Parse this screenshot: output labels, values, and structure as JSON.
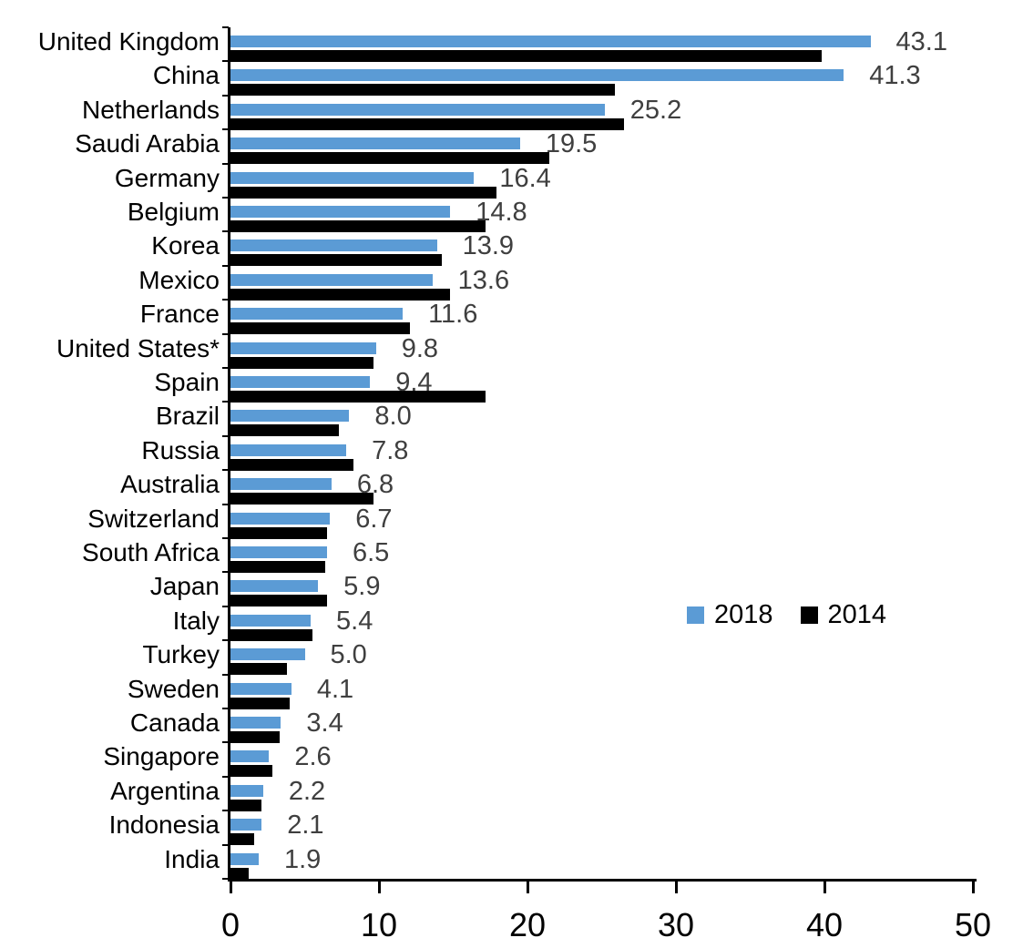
{
  "chart_data": {
    "type": "bar",
    "orientation": "horizontal",
    "title": "",
    "categories": [
      "United Kingdom",
      "China",
      "Netherlands",
      "Saudi Arabia",
      "Germany",
      "Belgium",
      "Korea",
      "Mexico",
      "France",
      "United States*",
      "Spain",
      "Brazil",
      "Russia",
      "Australia",
      "Switzerland",
      "South Africa",
      "Japan",
      "Italy",
      "Turkey",
      "Sweden",
      "Canada",
      "Singapore",
      "Argentina",
      "Indonesia",
      "India"
    ],
    "series": [
      {
        "name": "2018",
        "color": "#5B9BD5",
        "data_labels_shown": true,
        "values": [
          43.1,
          41.3,
          25.2,
          19.5,
          16.4,
          14.8,
          13.9,
          13.6,
          11.6,
          9.8,
          9.4,
          8.0,
          7.8,
          6.8,
          6.7,
          6.5,
          5.9,
          5.4,
          5.0,
          4.1,
          3.4,
          2.6,
          2.2,
          2.1,
          1.9
        ]
      },
      {
        "name": "2014",
        "color": "#000000",
        "data_labels_shown": false,
        "values": [
          39.8,
          25.9,
          26.5,
          21.5,
          17.9,
          17.2,
          14.2,
          14.8,
          12.1,
          9.6,
          17.2,
          7.3,
          8.3,
          9.6,
          6.5,
          6.4,
          6.5,
          5.5,
          3.8,
          4.0,
          3.3,
          2.8,
          2.1,
          1.6,
          1.2
        ]
      }
    ],
    "xlim": [
      0,
      50
    ],
    "xticks": [
      "0",
      "10",
      "20",
      "30",
      "40",
      "50"
    ],
    "grid": false,
    "legend": {
      "position": "middle-right",
      "entries": [
        {
          "label": "2018",
          "color": "#5B9BD5"
        },
        {
          "label": "2014",
          "color": "#000000"
        }
      ]
    },
    "value_label_color": "#3F3F3F",
    "axis_color": "#000000"
  }
}
